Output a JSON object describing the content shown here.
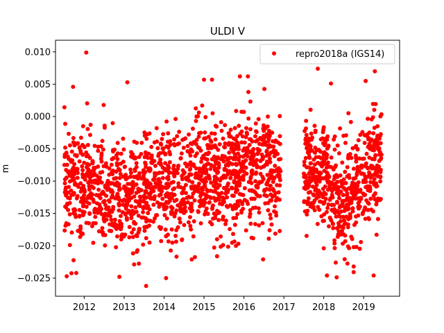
{
  "chart_data": {
    "type": "scatter",
    "title": "ULDI V",
    "xlabel": "",
    "ylabel": "m",
    "xlim": [
      2011.28,
      2019.9
    ],
    "ylim": [
      -0.0278,
      0.0118
    ],
    "x_ticks": [
      2012,
      2013,
      2014,
      2015,
      2016,
      2017,
      2018,
      2019
    ],
    "x_tick_labels": [
      "2012",
      "2013",
      "2014",
      "2015",
      "2016",
      "2017",
      "2018",
      "2019"
    ],
    "y_ticks": [
      0.01,
      0.005,
      0.0,
      -0.005,
      -0.01,
      -0.015,
      -0.02,
      -0.025
    ],
    "y_tick_labels": [
      "0.010",
      "0.005",
      "0.000",
      "−0.005",
      "−0.010",
      "−0.015",
      "−0.020",
      "−0.025"
    ],
    "grid": false,
    "legend_position": "upper right",
    "series": [
      {
        "name": "repro2018a (IGS14)",
        "color": "#ff0000",
        "marker": "o",
        "segments": [
          {
            "x_range": [
              2011.5,
              2016.92
            ],
            "trend": [
              [
                2011.5,
                -0.01
              ],
              [
                2012.5,
                -0.0115
              ],
              [
                2013.0,
                -0.013
              ],
              [
                2013.5,
                -0.0125
              ],
              [
                2014.0,
                -0.01
              ],
              [
                2014.5,
                -0.0115
              ],
              [
                2015.0,
                -0.008
              ],
              [
                2015.5,
                -0.0105
              ],
              [
                2016.0,
                -0.008
              ],
              [
                2016.4,
                -0.0075
              ],
              [
                2016.92,
                -0.009
              ]
            ],
            "spread": 0.0042,
            "approx_count": 1500
          },
          {
            "x_range": [
              2017.5,
              2019.45
            ],
            "trend": [
              [
                2017.5,
                -0.008
              ],
              [
                2018.0,
                -0.01
              ],
              [
                2018.5,
                -0.0135
              ],
              [
                2019.0,
                -0.01
              ],
              [
                2019.45,
                -0.008
              ]
            ],
            "spread": 0.0042,
            "approx_count": 600
          }
        ],
        "notable_points": [
          {
            "x": 2012.05,
            "y": 0.0099
          },
          {
            "x": 2017.85,
            "y": 0.0074
          },
          {
            "x": 2019.28,
            "y": 0.007
          },
          {
            "x": 2018.18,
            "y": 0.0051
          },
          {
            "x": 2013.08,
            "y": 0.0053
          },
          {
            "x": 2015.0,
            "y": 0.0057
          },
          {
            "x": 2015.2,
            "y": 0.0057
          },
          {
            "x": 2015.9,
            "y": 0.0062
          },
          {
            "x": 2016.1,
            "y": 0.0062
          },
          {
            "x": 2011.72,
            "y": 0.0046
          },
          {
            "x": 2019.05,
            "y": 0.0055
          },
          {
            "x": 2011.8,
            "y": -0.0242
          },
          {
            "x": 2013.55,
            "y": -0.0262
          },
          {
            "x": 2014.05,
            "y": -0.025
          },
          {
            "x": 2012.88,
            "y": -0.0248
          },
          {
            "x": 2018.08,
            "y": -0.0246
          },
          {
            "x": 2019.25,
            "y": -0.0246
          },
          {
            "x": 2015.8,
            "y": -0.02
          },
          {
            "x": 2016.48,
            "y": -0.0221
          },
          {
            "x": 2018.75,
            "y": -0.0232
          },
          {
            "x": 2018.3,
            "y": -0.0226
          }
        ]
      }
    ]
  }
}
